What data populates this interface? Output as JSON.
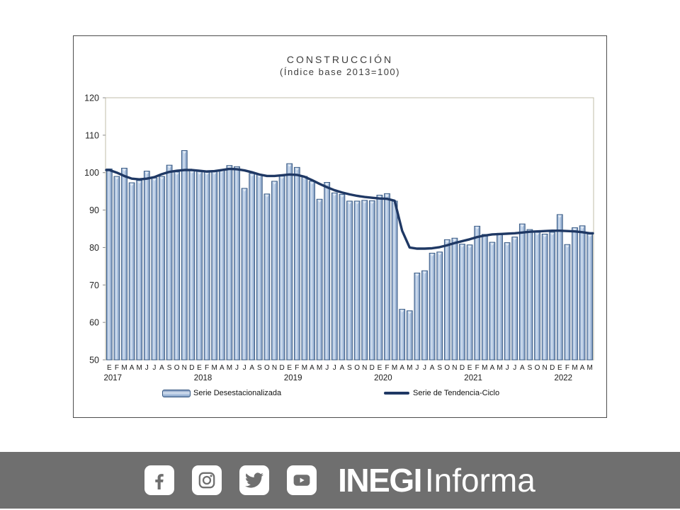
{
  "title": {
    "line1": "CONSTRUCCIÓN",
    "line2": "(Índice base 2013=100)"
  },
  "legend": {
    "bars_label": "Serie Desestacionalizada",
    "line_label": "Serie de Tendencia-Ciclo"
  },
  "footer": {
    "background": "#6F6F6F",
    "icons": [
      "facebook-icon",
      "instagram-icon",
      "twitter-icon",
      "youtube-icon"
    ],
    "brand_bold": "INEGI",
    "brand_light": "Informa"
  },
  "chart_data": {
    "type": "bar",
    "title": "CONSTRUCCIÓN (Índice base 2013=100)",
    "ylim": [
      50,
      120
    ],
    "yticks": [
      50,
      60,
      70,
      80,
      90,
      100,
      110,
      120
    ],
    "grid": false,
    "legend_position": "bottom",
    "month_letters": [
      "E",
      "F",
      "M",
      "A",
      "M",
      "J",
      "J",
      "A",
      "S",
      "O",
      "N",
      "D",
      "E",
      "F",
      "M",
      "A",
      "M",
      "J",
      "J",
      "A",
      "S",
      "O",
      "N",
      "D",
      "E",
      "F",
      "M",
      "A",
      "M",
      "J",
      "J",
      "A",
      "S",
      "O",
      "N",
      "D",
      "E",
      "F",
      "M",
      "A",
      "M",
      "J",
      "J",
      "A",
      "S",
      "O",
      "N",
      "D",
      "E",
      "F",
      "M",
      "A",
      "M",
      "J",
      "J",
      "A",
      "S",
      "O",
      "N",
      "D",
      "E",
      "F",
      "M",
      "A",
      "M"
    ],
    "years": [
      {
        "label": "2017",
        "start": 0
      },
      {
        "label": "2018",
        "start": 12
      },
      {
        "label": "2019",
        "start": 24
      },
      {
        "label": "2020",
        "start": 36
      },
      {
        "label": "2021",
        "start": 48
      },
      {
        "label": "2022",
        "start": 60
      }
    ],
    "series": [
      {
        "name": "Serie Desestacionalizada",
        "type": "bar",
        "values": [
          101.0,
          99.0,
          101.2,
          97.3,
          97.9,
          100.4,
          98.6,
          99.0,
          102.0,
          100.2,
          105.9,
          100.6,
          100.3,
          100.2,
          100.3,
          100.8,
          101.9,
          101.6,
          95.8,
          99.8,
          99.5,
          94.3,
          97.7,
          99.1,
          102.4,
          101.4,
          99.0,
          97.7,
          92.9,
          97.4,
          94.6,
          94.2,
          92.4,
          92.4,
          92.6,
          92.5,
          94.0,
          94.4,
          92.4,
          63.5,
          63.1,
          73.2,
          73.8,
          78.5,
          78.8,
          82.1,
          82.5,
          80.9,
          80.7,
          85.7,
          83.5,
          81.4,
          83.8,
          81.3,
          82.8,
          86.3,
          84.8,
          84.1,
          83.6,
          84.1,
          88.8,
          80.8,
          85.3,
          85.8,
          83.6
        ]
      },
      {
        "name": "Serie de Tendencia-Ciclo",
        "type": "line",
        "values": [
          100.7,
          100.0,
          99.1,
          98.4,
          98.2,
          98.4,
          98.8,
          99.6,
          100.2,
          100.5,
          100.7,
          100.7,
          100.5,
          100.3,
          100.4,
          100.7,
          101.0,
          100.9,
          100.6,
          100.1,
          99.5,
          99.1,
          99.1,
          99.3,
          99.5,
          99.4,
          98.9,
          98.0,
          97.0,
          96.1,
          95.3,
          94.7,
          94.2,
          93.8,
          93.5,
          93.3,
          93.1,
          93.0,
          92.5,
          84.5,
          80.0,
          79.7,
          79.7,
          79.8,
          80.1,
          80.6,
          81.2,
          81.7,
          82.2,
          82.8,
          83.2,
          83.5,
          83.6,
          83.7,
          83.8,
          84.0,
          84.2,
          84.3,
          84.4,
          84.5,
          84.5,
          84.4,
          84.3,
          84.1,
          83.8
        ]
      }
    ],
    "colors": {
      "bar_fill_light": "#D7E2F0",
      "bar_fill_mid": "#A9C0DD",
      "bar_fill_dark": "#7590B8",
      "bar_edge": "#33557F",
      "line": "#1F3864",
      "plot_border": "#C0BDA8",
      "axis": "#8C8C8C"
    }
  }
}
